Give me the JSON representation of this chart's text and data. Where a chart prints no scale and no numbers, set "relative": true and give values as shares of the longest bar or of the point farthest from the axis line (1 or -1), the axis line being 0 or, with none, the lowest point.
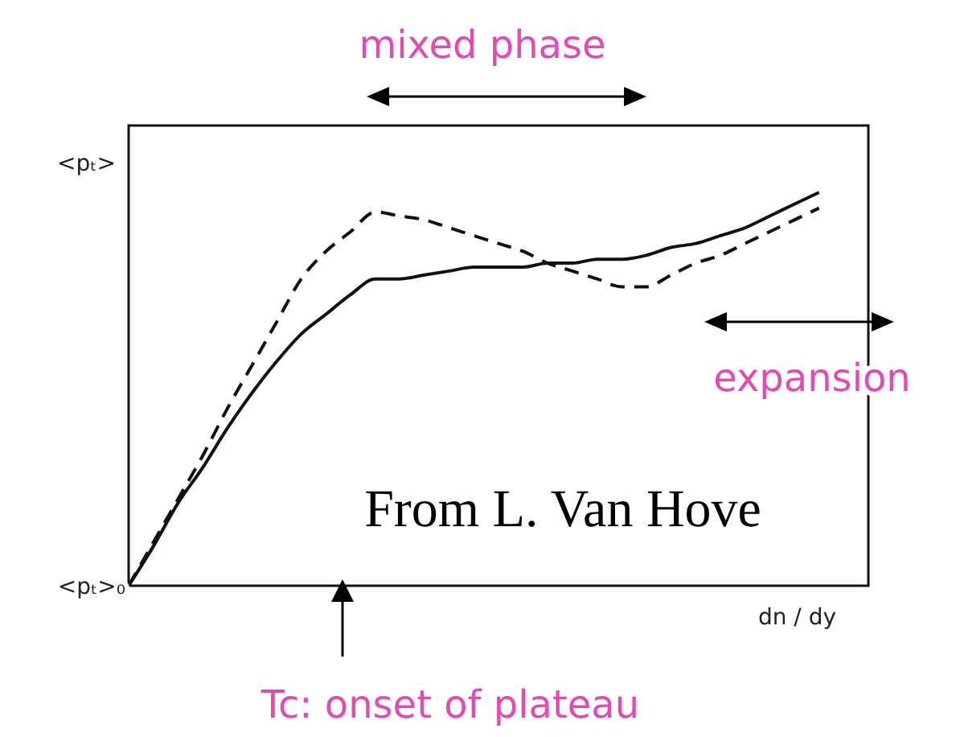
{
  "chart_data": {
    "type": "line",
    "relative": true,
    "xlabel": "dn / dy",
    "ylabel": "<pₜ>",
    "categories": [
      null,
      null,
      null,
      null,
      null,
      null,
      null,
      null,
      null,
      null,
      null,
      null,
      null,
      null,
      null,
      null,
      null,
      null,
      null,
      null,
      null,
      null,
      null,
      null,
      null,
      null,
      null,
      null,
      null,
      null,
      null
    ],
    "series": [
      {
        "color": "#111111",
        "line_style": "solid",
        "values": [
          0,
          0.1,
          0.21,
          0.3,
          0.4,
          0.49,
          0.57,
          0.64,
          0.69,
          0.74,
          0.78,
          0.78,
          0.79,
          0.8,
          0.81,
          0.81,
          0.81,
          0.82,
          0.82,
          0.83,
          0.83,
          0.84,
          0.86,
          0.87,
          0.89,
          0.91,
          0.94,
          0.97,
          1,
          null,
          null
        ]
      },
      {
        "color": "#111111",
        "line_style": "dashed",
        "values": [
          0,
          0.11,
          0.22,
          0.33,
          0.45,
          0.56,
          0.67,
          0.78,
          0.85,
          0.9,
          0.95,
          0.94,
          0.93,
          0.91,
          0.89,
          0.87,
          0.85,
          0.82,
          0.8,
          0.78,
          0.76,
          0.76,
          0.79,
          0.82,
          0.84,
          0.87,
          0.9,
          0.93,
          0.96,
          null,
          null
        ]
      }
    ],
    "annotations": [
      "mixed phase",
      "expansion",
      "From L. Van Hove",
      "Tc: onset of plateau",
      "<pₜ>₀"
    ]
  }
}
